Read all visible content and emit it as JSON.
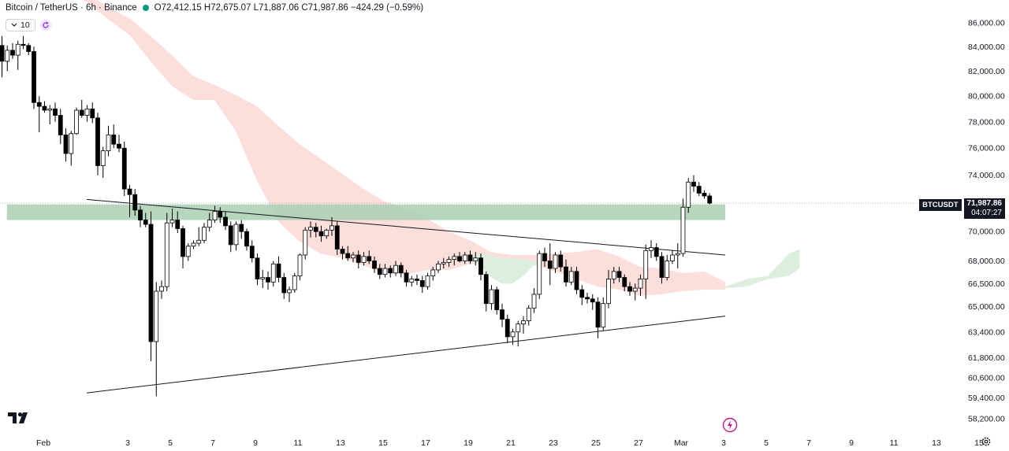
{
  "header": {
    "title": "Bitcoin / TetherUS · 6h · Binance",
    "ohlc": "O72,412.15 H72,675.07 L71,887.06 C71,987.86 −424.29 (−0.59%)",
    "status_color": "#089981"
  },
  "indicator": {
    "value": "10",
    "icon": "reload-icon"
  },
  "price_tag": {
    "symbol": "BTCUSDT",
    "price": "71,987.86",
    "countdown": "04:07:27"
  },
  "colors": {
    "up": "#ffffff",
    "down": "#000000",
    "wick": "#000000",
    "cloud_bear": "#fcdedb",
    "cloud_bull": "#dceedd",
    "zone": "#a9cfb3",
    "trendline": "#131722",
    "price_line": "#9598a1"
  },
  "chart_data": {
    "type": "candlestick",
    "yticks": [
      86000,
      84000,
      82000,
      80000,
      78000,
      76000,
      74000,
      70000,
      68000,
      66500,
      65000,
      63400,
      61800,
      60600,
      59400,
      58200
    ],
    "ytick_labels": [
      "86,000.00",
      "84,000.00",
      "82,000.00",
      "80,000.00",
      "78,000.00",
      "76,000.00",
      "74,000.00",
      "70,000.00",
      "68,000.00",
      "66,500.00",
      "65,000.00",
      "63,400.00",
      "61,800.00",
      "60,600.00",
      "59,400.00",
      "58,200.00"
    ],
    "xtick_labels": [
      "Feb",
      "3",
      "5",
      "7",
      "9",
      "11",
      "13",
      "15",
      "17",
      "19",
      "21",
      "23",
      "25",
      "27",
      "Mar",
      "3",
      "5",
      "7",
      "9",
      "11",
      "13",
      "15"
    ],
    "xticks": [
      0,
      2,
      4,
      6,
      8,
      10,
      12,
      14,
      16,
      18,
      20,
      22,
      24,
      26,
      28,
      30,
      32,
      34,
      36,
      38,
      40,
      42
    ],
    "last_price": 71987.86,
    "candles": [
      [
        0.0,
        84100,
        84900,
        81500,
        82800
      ],
      [
        0.25,
        82800,
        84100,
        82000,
        83700
      ],
      [
        0.5,
        83700,
        84300,
        83000,
        83300
      ],
      [
        0.75,
        83300,
        84500,
        82100,
        84200
      ],
      [
        1.0,
        84200,
        84900,
        83800,
        84100
      ],
      [
        1.25,
        84100,
        84300,
        83300,
        83600
      ],
      [
        1.5,
        83600,
        84000,
        79000,
        79500
      ],
      [
        1.75,
        79500,
        80000,
        77200,
        79200
      ],
      [
        2.0,
        79200,
        79600,
        78700,
        78900
      ],
      [
        2.25,
        78900,
        79300,
        77800,
        79000
      ],
      [
        2.5,
        79000,
        79500,
        78000,
        78500
      ],
      [
        2.75,
        78500,
        79000,
        76300,
        77000
      ],
      [
        3.0,
        77000,
        77500,
        75000,
        75600
      ],
      [
        3.25,
        75600,
        77300,
        74700,
        77100
      ],
      [
        3.5,
        77100,
        79100,
        77000,
        78900
      ],
      [
        3.75,
        78900,
        79700,
        78300,
        78500
      ],
      [
        4.0,
        78500,
        79300,
        78000,
        79000
      ],
      [
        4.25,
        79000,
        79500,
        77900,
        78300
      ],
      [
        4.5,
        78300,
        78700,
        74000,
        74700
      ],
      [
        4.75,
        74700,
        76100,
        73800,
        75800
      ],
      [
        5.0,
        75800,
        77700,
        75400,
        77000
      ],
      [
        5.25,
        77000,
        77800,
        76000,
        76300
      ],
      [
        5.5,
        76300,
        77000,
        75700,
        76000
      ],
      [
        5.75,
        76000,
        76500,
        72500,
        73000
      ],
      [
        6.0,
        73000,
        73300,
        71000,
        72600
      ],
      [
        6.25,
        72600,
        73000,
        71100,
        71500
      ],
      [
        6.5,
        71500,
        71800,
        70300,
        70800
      ],
      [
        6.75,
        70800,
        71300,
        70300,
        70500
      ],
      [
        7.0,
        70500,
        71400,
        61600,
        62800
      ],
      [
        7.25,
        62800,
        66600,
        59500,
        66000
      ],
      [
        7.5,
        66000,
        66700,
        65500,
        66300
      ],
      [
        7.75,
        66300,
        71300,
        66000,
        70600
      ],
      [
        8.0,
        70600,
        71600,
        70300,
        70800
      ],
      [
        8.25,
        70800,
        71400,
        69900,
        70200
      ],
      [
        8.5,
        70200,
        70400,
        67500,
        68300
      ],
      [
        8.75,
        68300,
        69200,
        68000,
        69000
      ],
      [
        9.0,
        69000,
        69400,
        68800,
        69200
      ],
      [
        9.25,
        69200,
        70300,
        69000,
        69400
      ],
      [
        9.5,
        69400,
        70600,
        69200,
        70300
      ],
      [
        9.75,
        70300,
        71300,
        70000,
        70800
      ],
      [
        10.0,
        70800,
        71800,
        70600,
        71400
      ],
      [
        10.25,
        71400,
        71700,
        70600,
        71000
      ],
      [
        10.5,
        71000,
        71400,
        70100,
        70400
      ],
      [
        10.75,
        70400,
        70700,
        68600,
        69100
      ],
      [
        11.0,
        69100,
        70700,
        68700,
        70500
      ],
      [
        11.25,
        70500,
        70800,
        69500,
        70000
      ],
      [
        11.5,
        70000,
        70200,
        68700,
        69000
      ],
      [
        11.75,
        69000,
        69400,
        67900,
        68200
      ],
      [
        12.0,
        68200,
        68500,
        66400,
        66800
      ],
      [
        12.25,
        66800,
        67400,
        66200,
        66900
      ],
      [
        12.5,
        66900,
        67300,
        66100,
        66600
      ],
      [
        12.75,
        66600,
        68000,
        66300,
        67800
      ],
      [
        13.0,
        67800,
        68300,
        66600,
        66900
      ],
      [
        13.25,
        66900,
        67200,
        65500,
        65900
      ],
      [
        13.5,
        65900,
        66300,
        65300,
        66100
      ],
      [
        13.75,
        66100,
        67200,
        65900,
        67000
      ],
      [
        14.0,
        67000,
        68500,
        66700,
        68400
      ],
      [
        14.25,
        68400,
        70300,
        68100,
        70100
      ],
      [
        14.5,
        70100,
        70700,
        69600,
        70300
      ],
      [
        14.75,
        70300,
        70600,
        69600,
        70000
      ],
      [
        15.0,
        70000,
        70400,
        69300,
        69700
      ],
      [
        15.25,
        69700,
        70200,
        69500,
        70100
      ],
      [
        15.5,
        70100,
        71000,
        69700,
        70400
      ],
      [
        15.75,
        70400,
        70700,
        68400,
        68800
      ],
      [
        16.0,
        68800,
        69000,
        68100,
        68500
      ],
      [
        16.25,
        68500,
        69000,
        68000,
        68200
      ],
      [
        16.5,
        68200,
        68600,
        67900,
        68400
      ],
      [
        16.75,
        68400,
        68700,
        67500,
        67900
      ],
      [
        17.0,
        67900,
        68600,
        67700,
        68300
      ],
      [
        17.25,
        68300,
        68700,
        67800,
        68000
      ],
      [
        17.5,
        68000,
        68300,
        67200,
        67500
      ],
      [
        17.75,
        67500,
        67800,
        66800,
        67100
      ],
      [
        18.0,
        67100,
        67800,
        66900,
        67500
      ],
      [
        18.25,
        67500,
        67700,
        66900,
        67200
      ],
      [
        18.5,
        67200,
        68000,
        67000,
        67700
      ],
      [
        18.75,
        67700,
        67900,
        66900,
        67200
      ],
      [
        19.0,
        67200,
        67400,
        66300,
        66600
      ],
      [
        19.25,
        66600,
        67000,
        66300,
        66800
      ],
      [
        19.5,
        66800,
        67100,
        66400,
        66700
      ],
      [
        19.75,
        66700,
        67000,
        65900,
        66300
      ],
      [
        20.0,
        66300,
        67200,
        66100,
        67000
      ],
      [
        20.25,
        67000,
        67600,
        66700,
        67400
      ],
      [
        20.5,
        67400,
        68000,
        67200,
        67800
      ],
      [
        20.75,
        67800,
        68200,
        67500,
        67900
      ],
      [
        21.0,
        67900,
        68300,
        67600,
        68100
      ],
      [
        21.25,
        68100,
        68500,
        67700,
        68300
      ],
      [
        21.5,
        68300,
        68600,
        67900,
        68000
      ],
      [
        21.75,
        68000,
        68600,
        67800,
        68400
      ],
      [
        22.0,
        68400,
        68700,
        67800,
        68000
      ],
      [
        22.25,
        68000,
        68600,
        67700,
        68200
      ],
      [
        22.5,
        68200,
        68500,
        66700,
        67100
      ],
      [
        22.75,
        67100,
        67300,
        64700,
        65200
      ],
      [
        23.0,
        65200,
        66400,
        64800,
        66100
      ],
      [
        23.25,
        66100,
        66300,
        64500,
        64800
      ],
      [
        23.5,
        64800,
        65200,
        63700,
        64200
      ],
      [
        23.75,
        64200,
        64500,
        62700,
        63100
      ],
      [
        24.0,
        63100,
        63600,
        62600,
        63400
      ],
      [
        24.25,
        63400,
        64100,
        62500,
        63900
      ],
      [
        24.5,
        63900,
        64400,
        63300,
        64100
      ],
      [
        24.75,
        64100,
        65100,
        63800,
        64900
      ],
      [
        25.0,
        64900,
        66200,
        64600,
        65800
      ],
      [
        25.25,
        65800,
        68700,
        65500,
        68500
      ],
      [
        25.5,
        68500,
        68900,
        67600,
        68000
      ],
      [
        25.75,
        68000,
        69200,
        66400,
        67500
      ],
      [
        26.0,
        67500,
        68600,
        67200,
        68400
      ],
      [
        26.25,
        68400,
        68700,
        67300,
        67600
      ],
      [
        26.5,
        67600,
        68100,
        66300,
        66600
      ],
      [
        26.75,
        66600,
        67600,
        66400,
        67300
      ],
      [
        27.0,
        67300,
        67600,
        65800,
        66100
      ],
      [
        27.25,
        66100,
        66400,
        65100,
        65600
      ],
      [
        27.5,
        65600,
        65900,
        65200,
        65500
      ],
      [
        27.75,
        65500,
        65800,
        64800,
        65300
      ],
      [
        28.0,
        65300,
        65600,
        63000,
        63700
      ],
      [
        28.25,
        63700,
        65600,
        63500,
        65200
      ],
      [
        28.5,
        65200,
        67400,
        64900,
        66800
      ],
      [
        28.75,
        66800,
        67600,
        66500,
        67300
      ],
      [
        29.0,
        67300,
        67600,
        66600,
        66900
      ],
      [
        29.25,
        66900,
        67100,
        66000,
        66300
      ],
      [
        29.5,
        66300,
        66600,
        65700,
        66000
      ],
      [
        29.75,
        66000,
        66500,
        65400,
        66200
      ],
      [
        30.0,
        66200,
        67100,
        65700,
        66800
      ],
      [
        30.25,
        66800,
        69100,
        65500,
        68700
      ],
      [
        30.5,
        68700,
        69400,
        68200,
        68900
      ],
      [
        30.75,
        68900,
        69200,
        68000,
        68300
      ],
      [
        31.0,
        68300,
        68600,
        66500,
        66900
      ],
      [
        31.25,
        66900,
        68400,
        66700,
        68000
      ],
      [
        31.5,
        68000,
        68700,
        67800,
        68400
      ],
      [
        31.75,
        68400,
        69200,
        67500,
        68500
      ],
      [
        32.0,
        68500,
        72300,
        68300,
        71700
      ],
      [
        32.25,
        71700,
        73800,
        71300,
        73500
      ],
      [
        32.5,
        73500,
        74000,
        72800,
        73200
      ],
      [
        32.75,
        73200,
        73500,
        72500,
        72700
      ],
      [
        33.0,
        72700,
        72900,
        72300,
        72500
      ],
      [
        33.25,
        72500,
        72700,
        71900,
        71990
      ]
    ],
    "trendlines": [
      {
        "from": [
          0.0,
          72250
        ],
        "to": [
          34.0,
          68400
        ]
      },
      {
        "from": [
          0.0,
          59700
        ],
        "to": [
          34.0,
          64400
        ]
      }
    ],
    "zone": {
      "x_from": 0.25,
      "x_to": 34.0,
      "y_low": 70800,
      "y_high": 71900
    },
    "cloud_bearish": [
      [
        3.0,
        89200,
        88500
      ],
      [
        4.0,
        88600,
        87800
      ],
      [
        5.0,
        87300,
        86300
      ],
      [
        6.0,
        86400,
        85000
      ],
      [
        7.0,
        84900,
        82800
      ],
      [
        8.0,
        83300,
        80800
      ],
      [
        9.0,
        81600,
        79700
      ],
      [
        10.0,
        80900,
        79700
      ],
      [
        11.0,
        80100,
        77300
      ],
      [
        12.0,
        79200,
        73600
      ],
      [
        13.0,
        77700,
        70700
      ],
      [
        14.0,
        76300,
        69300
      ],
      [
        15.0,
        75200,
        68500
      ],
      [
        16.0,
        74100,
        68200
      ],
      [
        17.0,
        73000,
        67700
      ],
      [
        18.0,
        72100,
        67200
      ],
      [
        19.0,
        71600,
        67100
      ],
      [
        20.0,
        70900,
        67400
      ],
      [
        21.0,
        70000,
        67400
      ],
      [
        22.0,
        69400,
        67800
      ],
      [
        23.0,
        68600,
        68000
      ],
      [
        24.0,
        68400,
        68200
      ],
      [
        25.0,
        68400,
        67800
      ],
      [
        26.0,
        68500,
        67300
      ],
      [
        27.0,
        68600,
        66800
      ],
      [
        28.0,
        68800,
        66300
      ],
      [
        29.0,
        68300,
        66100
      ],
      [
        30.0,
        67600,
        65700
      ],
      [
        31.0,
        67500,
        65800
      ],
      [
        32.0,
        67200,
        66000
      ],
      [
        33.0,
        67300,
        66100
      ],
      [
        34.0,
        66600,
        66100
      ]
    ],
    "cloud_bullish": [
      [
        22.0,
        68300,
        68000
      ],
      [
        22.5,
        68500,
        67700
      ],
      [
        23.0,
        68400,
        66900
      ],
      [
        23.5,
        68200,
        66500
      ],
      [
        24.0,
        68200,
        66500
      ],
      [
        24.5,
        68100,
        67000
      ],
      [
        25.0,
        68000,
        67700
      ],
      [
        25.5,
        67800,
        67800
      ],
      [
        34.0,
        66300,
        66200
      ],
      [
        35.0,
        66800,
        66300
      ],
      [
        36.0,
        67000,
        66800
      ],
      [
        37.0,
        68500,
        67000
      ],
      [
        37.5,
        68800,
        67500
      ]
    ],
    "ylim": [
      57400,
      88400
    ],
    "xlim": [
      0,
      44.5
    ]
  }
}
